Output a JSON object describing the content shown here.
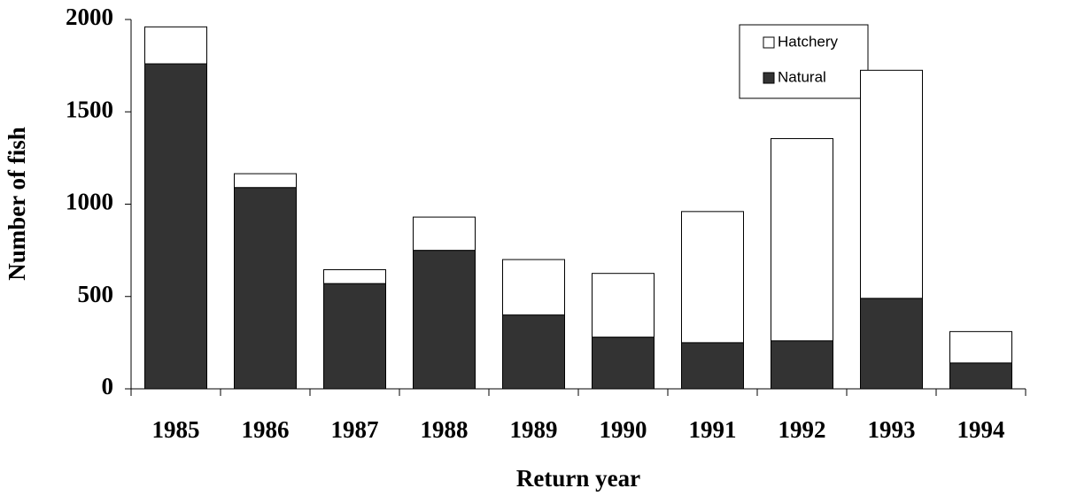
{
  "chart_data": {
    "type": "stacked_bar",
    "x_label": "Return year",
    "y_label": "Number of fish",
    "categories": [
      "1985",
      "1986",
      "1987",
      "1988",
      "1989",
      "1990",
      "1991",
      "1992",
      "1993",
      "1994"
    ],
    "series": [
      {
        "name": "Natural",
        "color": "#333333",
        "values": [
          1760,
          1090,
          570,
          750,
          400,
          280,
          250,
          260,
          490,
          140
        ]
      },
      {
        "name": "Hatchery",
        "color": "#ffffff",
        "values": [
          200,
          75,
          75,
          180,
          300,
          345,
          710,
          1095,
          1235,
          170
        ]
      }
    ],
    "ylim": [
      0,
      2000
    ],
    "yticks": [
      0,
      500,
      1000,
      1500,
      2000
    ]
  }
}
